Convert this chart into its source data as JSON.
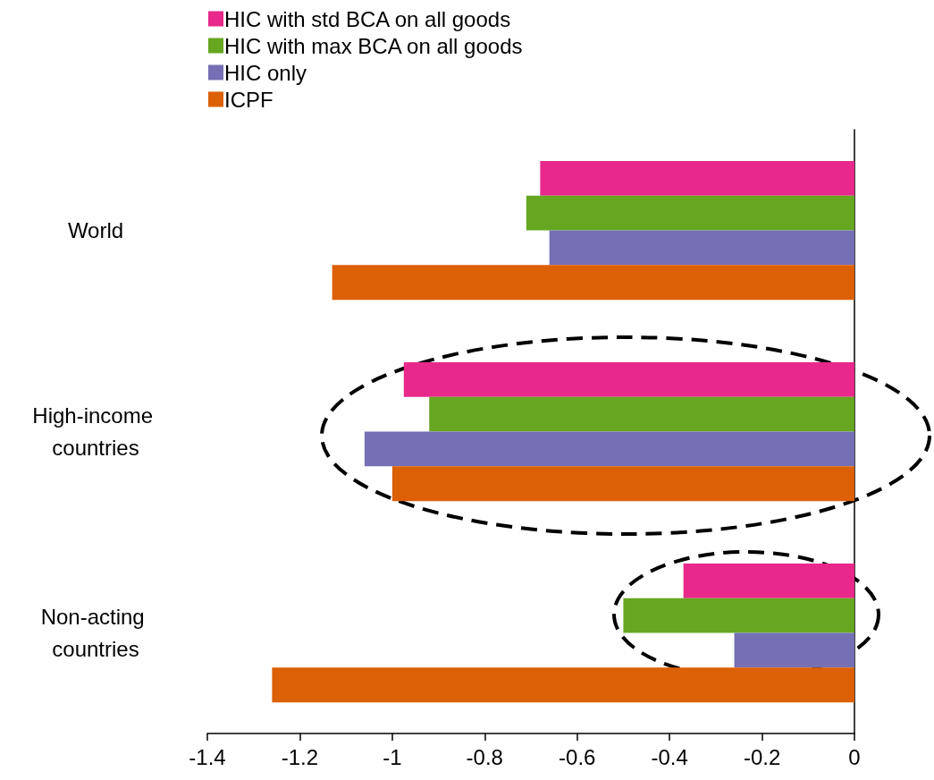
{
  "chart_data": {
    "type": "bar",
    "orientation": "horizontal",
    "categories": [
      "World",
      "High-income countries",
      "Non-acting countries"
    ],
    "series": [
      {
        "name": "HIC with std BCA on all goods",
        "color": "#e8288a",
        "values": [
          -0.68,
          -0.975,
          -0.37
        ]
      },
      {
        "name": "HIC with max BCA on all goods",
        "color": "#66a621",
        "values": [
          -0.71,
          -0.92,
          -0.5
        ]
      },
      {
        "name": "HIC only",
        "color": "#7570b5",
        "values": [
          -0.66,
          -1.06,
          -0.26
        ]
      },
      {
        "name": "ICPF",
        "color": "#dc6005",
        "values": [
          -1.13,
          -1.0,
          -1.26
        ]
      }
    ],
    "xlim": [
      -1.4,
      0
    ],
    "xticks": [
      -1.4,
      -1.2,
      -1,
      -0.8,
      -0.6,
      -0.4,
      -0.2,
      0
    ],
    "grid": false,
    "legend": "top left"
  }
}
